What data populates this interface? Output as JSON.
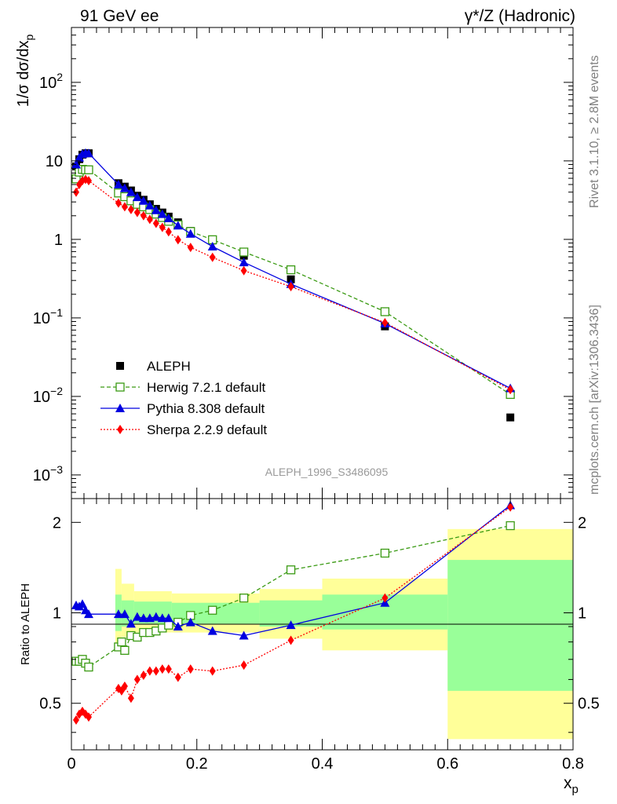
{
  "header": {
    "left": "91 GeV ee",
    "right": "γ*/Z (Hadronic)"
  },
  "side_text": {
    "rivet": "Rivet 3.1.10, ≥ 2.8M events",
    "source": "mcplots.cern.ch [arXiv:1306.3436]"
  },
  "analysis_id": "ALEPH_1996_S3486095",
  "colors": {
    "data": "#000000",
    "herwig": "#3a9a13",
    "pythia": "#0000e0",
    "sherpa": "#ff0000",
    "band_outer": "#ffff99",
    "band_inner": "#99ff99"
  },
  "chart_data": [
    {
      "type": "line",
      "panel": "main",
      "ylabel": "1/σ dσ/dx_p",
      "yscale": "log",
      "ylim": [
        0.0005,
        500
      ],
      "xlim": [
        0,
        0.8
      ],
      "y_tick_labels": [
        "10^-3",
        "10^-2",
        "10^-1",
        "1",
        "10",
        "10^2"
      ],
      "legend_position": "middle-left",
      "series": [
        {
          "name": "ALEPH",
          "key": "data",
          "style": "square-filled",
          "x": [
            0.0075,
            0.0125,
            0.0175,
            0.0225,
            0.0275,
            0.075,
            0.085,
            0.095,
            0.105,
            0.115,
            0.125,
            0.135,
            0.145,
            0.155,
            0.17,
            0.19,
            0.225,
            0.275,
            0.35,
            0.5,
            0.7
          ],
          "y": [
            8.5,
            10.5,
            12.0,
            12.5,
            12.5,
            5.2,
            4.7,
            4.2,
            3.6,
            3.2,
            2.8,
            2.45,
            2.2,
            1.95,
            1.65,
            1.28,
            0.97,
            0.62,
            0.31,
            0.078,
            0.0054
          ]
        },
        {
          "name": "Herwig 7.2.1 default",
          "key": "herwig",
          "style": "square-open-dashed",
          "x": [
            0.0075,
            0.0125,
            0.0175,
            0.0225,
            0.0275,
            0.075,
            0.085,
            0.095,
            0.105,
            0.115,
            0.125,
            0.135,
            0.145,
            0.155,
            0.17,
            0.19,
            0.225,
            0.275,
            0.35,
            0.5,
            0.7
          ],
          "y": [
            5.9,
            7.2,
            7.8,
            7.7,
            7.7,
            3.9,
            3.5,
            3.1,
            2.8,
            2.6,
            2.4,
            2.1,
            1.9,
            1.7,
            1.53,
            1.26,
            0.99,
            0.69,
            0.41,
            0.12,
            0.0106
          ]
        },
        {
          "name": "Pythia 8.308 default",
          "key": "pythia",
          "style": "triangle-solid",
          "x": [
            0.0075,
            0.0125,
            0.0175,
            0.0225,
            0.0275,
            0.075,
            0.085,
            0.095,
            0.105,
            0.115,
            0.125,
            0.135,
            0.145,
            0.155,
            0.17,
            0.19,
            0.225,
            0.275,
            0.35,
            0.5,
            0.7
          ],
          "y": [
            9.0,
            11.0,
            12.2,
            12.6,
            12.5,
            5.0,
            4.5,
            4.0,
            3.45,
            3.1,
            2.7,
            2.35,
            2.1,
            1.86,
            1.5,
            1.18,
            0.81,
            0.51,
            0.27,
            0.085,
            0.0127
          ]
        },
        {
          "name": "Sherpa 2.2.9 default",
          "key": "sherpa",
          "style": "diamond-dotted",
          "x": [
            0.0075,
            0.0125,
            0.0175,
            0.0225,
            0.0275,
            0.075,
            0.085,
            0.095,
            0.105,
            0.115,
            0.125,
            0.135,
            0.145,
            0.155,
            0.17,
            0.19,
            0.225,
            0.275,
            0.35,
            0.5,
            0.7
          ],
          "y": [
            4.0,
            5.0,
            5.6,
            5.8,
            5.6,
            2.9,
            2.6,
            2.4,
            2.2,
            2.0,
            1.8,
            1.6,
            1.42,
            1.25,
            0.99,
            0.79,
            0.59,
            0.4,
            0.25,
            0.087,
            0.0122
          ]
        }
      ]
    },
    {
      "type": "line",
      "panel": "ratio",
      "xlabel": "x_p",
      "ylabel": "Ratio to ALEPH",
      "yscale": "log",
      "ylim": [
        0.35,
        2.4
      ],
      "xlim": [
        0,
        0.8
      ],
      "x_tick_labels": [
        "0",
        "0.2",
        "0.4",
        "0.6",
        "0.8"
      ],
      "y_tick_labels": [
        "0.5",
        "1",
        "2"
      ],
      "reference_line": 1,
      "band_outer": [
        {
          "x0": 0.07,
          "x1": 0.08,
          "lo": 0.78,
          "hi": 1.4
        },
        {
          "x0": 0.08,
          "x1": 0.1,
          "lo": 0.83,
          "hi": 1.25
        },
        {
          "x0": 0.1,
          "x1": 0.16,
          "lo": 0.86,
          "hi": 1.18
        },
        {
          "x0": 0.16,
          "x1": 0.3,
          "lo": 0.86,
          "hi": 1.16
        },
        {
          "x0": 0.3,
          "x1": 0.4,
          "lo": 0.82,
          "hi": 1.2
        },
        {
          "x0": 0.4,
          "x1": 0.6,
          "lo": 0.75,
          "hi": 1.3
        },
        {
          "x0": 0.6,
          "x1": 0.8,
          "lo": 0.38,
          "hi": 1.9
        }
      ],
      "band_inner": [
        {
          "x0": 0.07,
          "x1": 0.08,
          "lo": 0.87,
          "hi": 1.15
        },
        {
          "x0": 0.08,
          "x1": 0.1,
          "lo": 0.9,
          "hi": 1.1
        },
        {
          "x0": 0.1,
          "x1": 0.16,
          "lo": 0.92,
          "hi": 1.09
        },
        {
          "x0": 0.16,
          "x1": 0.3,
          "lo": 0.92,
          "hi": 1.08
        },
        {
          "x0": 0.3,
          "x1": 0.4,
          "lo": 0.9,
          "hi": 1.1
        },
        {
          "x0": 0.4,
          "x1": 0.6,
          "lo": 0.88,
          "hi": 1.15
        },
        {
          "x0": 0.6,
          "x1": 0.8,
          "lo": 0.55,
          "hi": 1.5
        }
      ],
      "series": [
        {
          "name": "Herwig 7.2.1 default",
          "key": "herwig",
          "style": "square-open-dashed",
          "x": [
            0.0075,
            0.0125,
            0.0175,
            0.0225,
            0.0275,
            0.075,
            0.08,
            0.085,
            0.095,
            0.105,
            0.115,
            0.125,
            0.135,
            0.145,
            0.155,
            0.17,
            0.19,
            0.225,
            0.275,
            0.35,
            0.5,
            0.7
          ],
          "y": [
            0.69,
            0.69,
            0.7,
            0.68,
            0.66,
            0.77,
            0.8,
            0.75,
            0.84,
            0.83,
            0.86,
            0.86,
            0.87,
            0.89,
            0.91,
            0.93,
            0.98,
            1.02,
            1.12,
            1.39,
            1.58,
            1.95
          ]
        },
        {
          "name": "Pythia 8.308 default",
          "key": "pythia",
          "style": "triangle-solid",
          "x": [
            0.0075,
            0.0125,
            0.0175,
            0.0225,
            0.0275,
            0.075,
            0.085,
            0.095,
            0.105,
            0.115,
            0.125,
            0.135,
            0.145,
            0.155,
            0.17,
            0.19,
            0.225,
            0.275,
            0.35,
            0.5,
            0.7
          ],
          "y": [
            1.06,
            1.05,
            1.07,
            1.02,
            0.99,
            0.99,
            0.99,
            0.92,
            0.97,
            0.96,
            0.96,
            0.97,
            0.96,
            0.96,
            0.9,
            0.93,
            0.87,
            0.84,
            0.91,
            1.08,
            2.28
          ]
        },
        {
          "name": "Sherpa 2.2.9 default",
          "key": "sherpa",
          "style": "diamond-dotted",
          "x": [
            0.0075,
            0.0125,
            0.0175,
            0.0225,
            0.0275,
            0.075,
            0.08,
            0.085,
            0.095,
            0.105,
            0.115,
            0.125,
            0.135,
            0.145,
            0.155,
            0.17,
            0.19,
            0.225,
            0.275,
            0.35,
            0.5,
            0.7
          ],
          "y": [
            0.44,
            0.46,
            0.47,
            0.46,
            0.45,
            0.56,
            0.55,
            0.57,
            0.52,
            0.6,
            0.62,
            0.64,
            0.64,
            0.65,
            0.65,
            0.61,
            0.65,
            0.64,
            0.67,
            0.81,
            1.12,
            2.25
          ]
        }
      ]
    }
  ]
}
